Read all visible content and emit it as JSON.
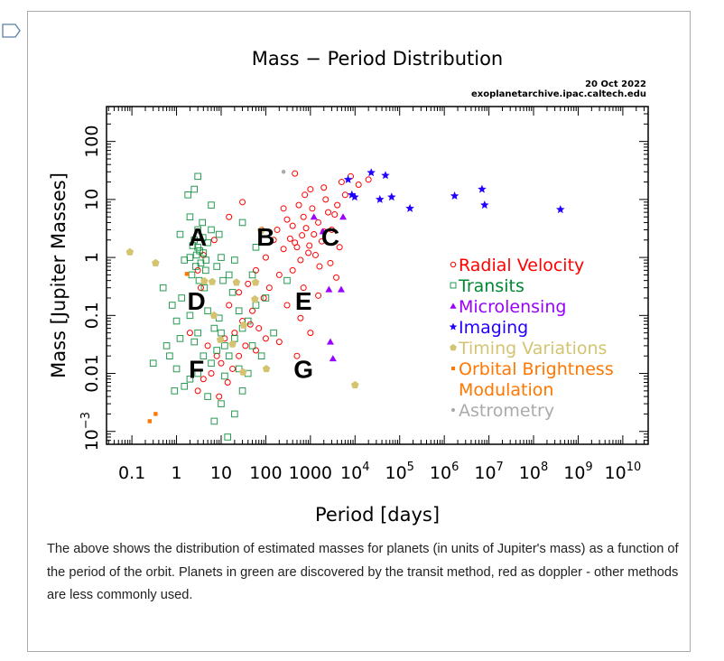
{
  "chart_data": {
    "type": "scatter",
    "title": "Mass − Period Distribution",
    "date": "20 Oct 2022",
    "source": "exoplanetarchive.ipac.caltech.edu",
    "xlabel": "Period [days]",
    "ylabel": "Mass [Jupiter Masses]",
    "xscale": "log",
    "yscale": "log",
    "xlim": [
      0.027,
      37000000000.0
    ],
    "ylim": [
      0.0006,
      400
    ],
    "xticks": [
      {
        "value": 0.1,
        "label": "0.1",
        "sup": ""
      },
      {
        "value": 1,
        "label": "1",
        "sup": ""
      },
      {
        "value": 10,
        "label": "10",
        "sup": ""
      },
      {
        "value": 100,
        "label": "100",
        "sup": ""
      },
      {
        "value": 1000,
        "label": "1000",
        "sup": ""
      },
      {
        "value": 10000.0,
        "label": "10",
        "sup": "4"
      },
      {
        "value": 100000.0,
        "label": "10",
        "sup": "5"
      },
      {
        "value": 1000000.0,
        "label": "10",
        "sup": "6"
      },
      {
        "value": 10000000.0,
        "label": "10",
        "sup": "7"
      },
      {
        "value": 100000000.0,
        "label": "10",
        "sup": "8"
      },
      {
        "value": 1000000000.0,
        "label": "10",
        "sup": "9"
      },
      {
        "value": 10000000000.0,
        "label": "10",
        "sup": "10"
      }
    ],
    "yticks": [
      {
        "value": 100,
        "label": "100",
        "sup": ""
      },
      {
        "value": 10,
        "label": "10",
        "sup": ""
      },
      {
        "value": 1,
        "label": "1",
        "sup": ""
      },
      {
        "value": 0.1,
        "label": "0.1",
        "sup": ""
      },
      {
        "value": 0.01,
        "label": "0.01",
        "sup": ""
      },
      {
        "value": 0.001,
        "label": "10",
        "sup": "−3"
      }
    ],
    "grid": false,
    "legend_placement": "right-middle",
    "annotations": [
      {
        "text": "A",
        "x": 3,
        "y": 2.3
      },
      {
        "text": "B",
        "x": 100,
        "y": 2.3
      },
      {
        "text": "C",
        "x": 2800,
        "y": 2.3
      },
      {
        "text": "D",
        "x": 2.8,
        "y": 0.18
      },
      {
        "text": "E",
        "x": 700,
        "y": 0.18
      },
      {
        "text": "F",
        "x": 2.8,
        "y": 0.012
      },
      {
        "text": "G",
        "x": 700,
        "y": 0.012
      }
    ],
    "series": [
      {
        "name": "Radial Velocity",
        "marker": "circle-open",
        "color": "#ff0000",
        "points": [
          [
            350,
            2.1
          ],
          [
            500,
            1.5
          ],
          [
            800,
            3.2
          ],
          [
            1200,
            2.5
          ],
          [
            700,
            5
          ],
          [
            900,
            1.2
          ],
          [
            1500,
            4
          ],
          [
            2000,
            2.8
          ],
          [
            600,
            0.9
          ],
          [
            400,
            3.5
          ],
          [
            1100,
            7
          ],
          [
            2500,
            6
          ],
          [
            3000,
            3
          ],
          [
            450,
            1.8
          ],
          [
            650,
            2.4
          ],
          [
            950,
            1.6
          ],
          [
            1300,
            1.1
          ],
          [
            1800,
            1.9
          ],
          [
            250,
            1.4
          ],
          [
            300,
            4.5
          ],
          [
            550,
            8
          ],
          [
            750,
            12
          ],
          [
            1000,
            15
          ],
          [
            2200,
            10
          ],
          [
            4000,
            8
          ],
          [
            5000,
            20
          ],
          [
            6000,
            12
          ],
          [
            8000,
            25
          ],
          [
            12000,
            18
          ],
          [
            20000,
            22
          ],
          [
            3500,
            5.5
          ],
          [
            150,
            2
          ],
          [
            100,
            1
          ],
          [
            80,
            3
          ],
          [
            60,
            0.6
          ],
          [
            200,
            0.5
          ],
          [
            1600,
            0.7
          ],
          [
            2800,
            0.8
          ],
          [
            4500,
            1.5
          ],
          [
            3800,
            0.45
          ],
          [
            40,
            0.35
          ],
          [
            25,
            0.25
          ],
          [
            15,
            0.15
          ],
          [
            30,
            0.08
          ],
          [
            50,
            0.12
          ],
          [
            90,
            0.2
          ],
          [
            120,
            0.3
          ],
          [
            300,
            0.15
          ],
          [
            600,
            0.09
          ],
          [
            1000,
            0.05
          ],
          [
            5,
            0.03
          ],
          [
            8,
            0.02
          ],
          [
            12,
            0.04
          ],
          [
            20,
            0.05
          ],
          [
            35,
            0.03
          ],
          [
            45,
            0.07
          ],
          [
            70,
            0.06
          ],
          [
            10,
            0.015
          ],
          [
            6,
            0.01
          ],
          [
            18,
            0.012
          ],
          [
            25,
            0.02
          ],
          [
            4,
            0.008
          ],
          [
            3,
            0.005
          ],
          [
            9,
            0.004
          ],
          [
            14,
            0.007
          ],
          [
            60,
            0.025
          ],
          [
            100,
            0.04
          ],
          [
            200,
            0.035
          ],
          [
            500,
            0.02
          ],
          [
            2,
            0.05
          ],
          [
            3.5,
            0.3
          ],
          [
            4,
            1.1
          ],
          [
            3,
            0.6
          ],
          [
            7,
            2
          ],
          [
            15,
            5
          ],
          [
            30,
            9
          ],
          [
            450,
            28
          ],
          [
            2000,
            16
          ],
          [
            700,
            0.3
          ],
          [
            1500,
            0.22
          ],
          [
            400,
            0.6
          ],
          [
            250,
            7
          ],
          [
            180,
            3
          ]
        ]
      },
      {
        "name": "Transits",
        "marker": "square-open",
        "color": "#008833",
        "points": [
          [
            2,
            1
          ],
          [
            3,
            1.5
          ],
          [
            3.5,
            0.8
          ],
          [
            4,
            1.2
          ],
          [
            2.5,
            2
          ],
          [
            3,
            3
          ],
          [
            4.5,
            0.6
          ],
          [
            1.5,
            0.9
          ],
          [
            2.2,
            0.5
          ],
          [
            3.2,
            0.4
          ],
          [
            5,
            1.8
          ],
          [
            2.8,
            1.1
          ],
          [
            1.2,
            2.5
          ],
          [
            3.8,
            4
          ],
          [
            4.2,
            0.3
          ],
          [
            2,
            5
          ],
          [
            6,
            8
          ],
          [
            1.8,
            12
          ],
          [
            2.5,
            15
          ],
          [
            3,
            25
          ],
          [
            8,
            0.7
          ],
          [
            10,
            1
          ],
          [
            15,
            0.5
          ],
          [
            20,
            0.9
          ],
          [
            1.3,
            0.2
          ],
          [
            0.8,
            0.15
          ],
          [
            1,
            0.08
          ],
          [
            2,
            0.1
          ],
          [
            5,
            0.12
          ],
          [
            7,
            0.06
          ],
          [
            10,
            0.05
          ],
          [
            12,
            0.03
          ],
          [
            15,
            0.02
          ],
          [
            8,
            0.025
          ],
          [
            20,
            0.04
          ],
          [
            30,
            0.06
          ],
          [
            40,
            0.08
          ],
          [
            50,
            0.03
          ],
          [
            60,
            0.15
          ],
          [
            100,
            0.2
          ],
          [
            4,
            0.02
          ],
          [
            6,
            0.015
          ],
          [
            3,
            0.01
          ],
          [
            2,
            0.008
          ],
          [
            1,
            0.012
          ],
          [
            0.7,
            0.02
          ],
          [
            1.5,
            0.006
          ],
          [
            5,
            0.004
          ],
          [
            10,
            0.003
          ],
          [
            7,
            0.0015
          ],
          [
            20,
            0.002
          ],
          [
            30,
            0.005
          ],
          [
            12,
            0.009
          ],
          [
            25,
            0.012
          ],
          [
            3,
            0.05
          ],
          [
            1.2,
            0.04
          ],
          [
            0.5,
            0.3
          ],
          [
            0.6,
            0.03
          ],
          [
            0.9,
            0.005
          ],
          [
            40,
            0.01
          ],
          [
            80,
            0.02
          ],
          [
            150,
            0.05
          ],
          [
            300,
            0.4
          ],
          [
            6,
            3
          ],
          [
            9,
            2.5
          ],
          [
            30,
            4
          ],
          [
            60,
            1.5
          ],
          [
            2.7,
            0.7
          ],
          [
            3.3,
            1.3
          ],
          [
            3.9,
            2.2
          ],
          [
            2.3,
            1.6
          ],
          [
            4.6,
            0.9
          ],
          [
            11,
            0.4
          ],
          [
            18,
            0.25
          ],
          [
            25,
            0.12
          ],
          [
            0.3,
            0.015
          ],
          [
            14,
            0.0008
          ],
          [
            2.5,
            0.035
          ],
          [
            9,
            0.09
          ],
          [
            50,
            0.5
          ]
        ]
      },
      {
        "name": "Microlensing",
        "marker": "triangle",
        "color": "#9900ff",
        "points": [
          [
            1900,
            2.8
          ],
          [
            2600,
            0.28
          ],
          [
            4900,
            0.28
          ],
          [
            2800,
            0.035
          ],
          [
            3200,
            0.018
          ],
          [
            1200,
            5
          ],
          [
            5400,
            5
          ]
        ]
      },
      {
        "name": "Imaging",
        "marker": "star",
        "color": "#2200ff",
        "points": [
          [
            7000,
            22
          ],
          [
            23000,
            29
          ],
          [
            48000,
            26
          ],
          [
            8500,
            12
          ],
          [
            9800,
            11
          ],
          [
            36000,
            10
          ],
          [
            66000,
            11
          ],
          [
            170000,
            7
          ],
          [
            1700000,
            11.5
          ],
          [
            7000000,
            15
          ],
          [
            8000000,
            8
          ],
          [
            400000000,
            6.7
          ]
        ]
      },
      {
        "name": "Timing Variations",
        "marker": "pentagon",
        "color": "#d4c470",
        "points": [
          [
            0.09,
            1.24
          ],
          [
            0.34,
            0.8
          ],
          [
            4.2,
            0.39
          ],
          [
            22,
            0.37
          ],
          [
            6.3,
            0.38
          ],
          [
            59,
            0.37
          ],
          [
            57,
            0.19
          ],
          [
            6.9,
            0.1
          ],
          [
            32,
            0.068
          ],
          [
            18,
            0.032
          ],
          [
            9.6,
            0.038
          ],
          [
            31,
            0.0105
          ],
          [
            103,
            0.012
          ],
          [
            10000,
            0.0063
          ],
          [
            78,
            2.9
          ]
        ]
      },
      {
        "name": "Orbital Brightness Modulation",
        "legend_lines": [
          "Orbital Brightness",
          "Modulation"
        ],
        "marker": "square",
        "color": "#ff7700",
        "points": [
          [
            0.25,
            0.0015
          ],
          [
            0.34,
            0.002
          ],
          [
            1.7,
            0.52
          ]
        ]
      },
      {
        "name": "Astrometry",
        "marker": "dot",
        "color": "#aaaaaa",
        "points": [
          [
            250,
            30
          ]
        ]
      }
    ]
  },
  "caption": "The above shows the distribution of estimated masses for planets (in units of Jupiter's mass) as a function of the period of the orbit. Planets in green are discovered by the transit method, red as doppler - other methods are less commonly used."
}
